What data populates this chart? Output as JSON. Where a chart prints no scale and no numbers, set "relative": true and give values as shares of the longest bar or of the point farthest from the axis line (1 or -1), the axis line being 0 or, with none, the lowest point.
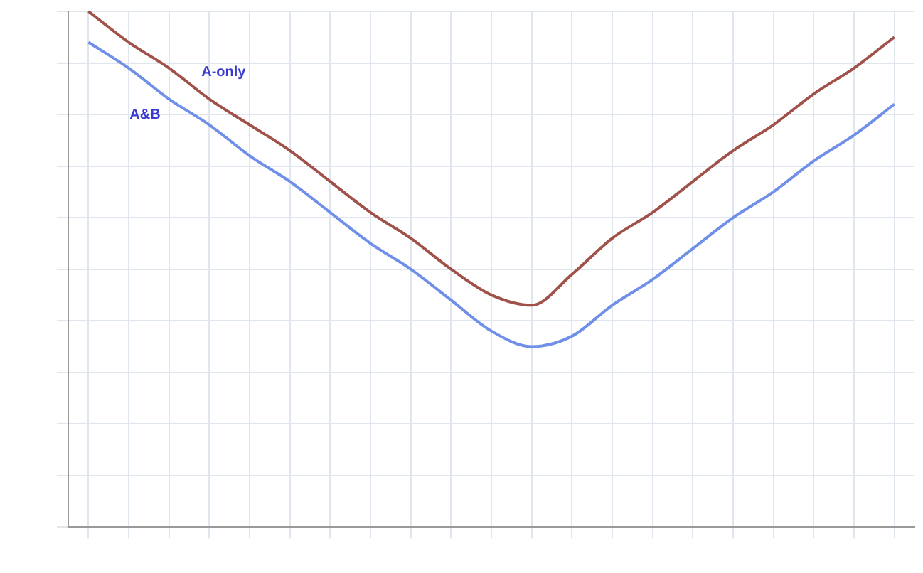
{
  "chart_data": {
    "type": "line",
    "relative": true,
    "grid": true,
    "legend": false,
    "marker": "none",
    "line_style": "solid",
    "categories": [
      null,
      null,
      null,
      null,
      null,
      null,
      null,
      null,
      null,
      null,
      null,
      null,
      null,
      null,
      null,
      null,
      null,
      null,
      null,
      null,
      null
    ],
    "series": [
      {
        "name": "A-only",
        "color": "#a0524a",
        "values": [
          1.0,
          0.94,
          0.89,
          0.83,
          0.78,
          0.73,
          0.67,
          0.61,
          0.56,
          0.5,
          0.45,
          0.43,
          0.49,
          0.56,
          0.61,
          0.67,
          0.73,
          0.78,
          0.84,
          0.89,
          0.95
        ]
      },
      {
        "name": "A&B",
        "color": "#6f8fe8",
        "values": [
          0.94,
          0.89,
          0.83,
          0.78,
          0.72,
          0.67,
          0.61,
          0.55,
          0.5,
          0.44,
          0.38,
          0.35,
          0.37,
          0.43,
          0.48,
          0.54,
          0.6,
          0.65,
          0.71,
          0.76,
          0.82
        ]
      }
    ]
  }
}
